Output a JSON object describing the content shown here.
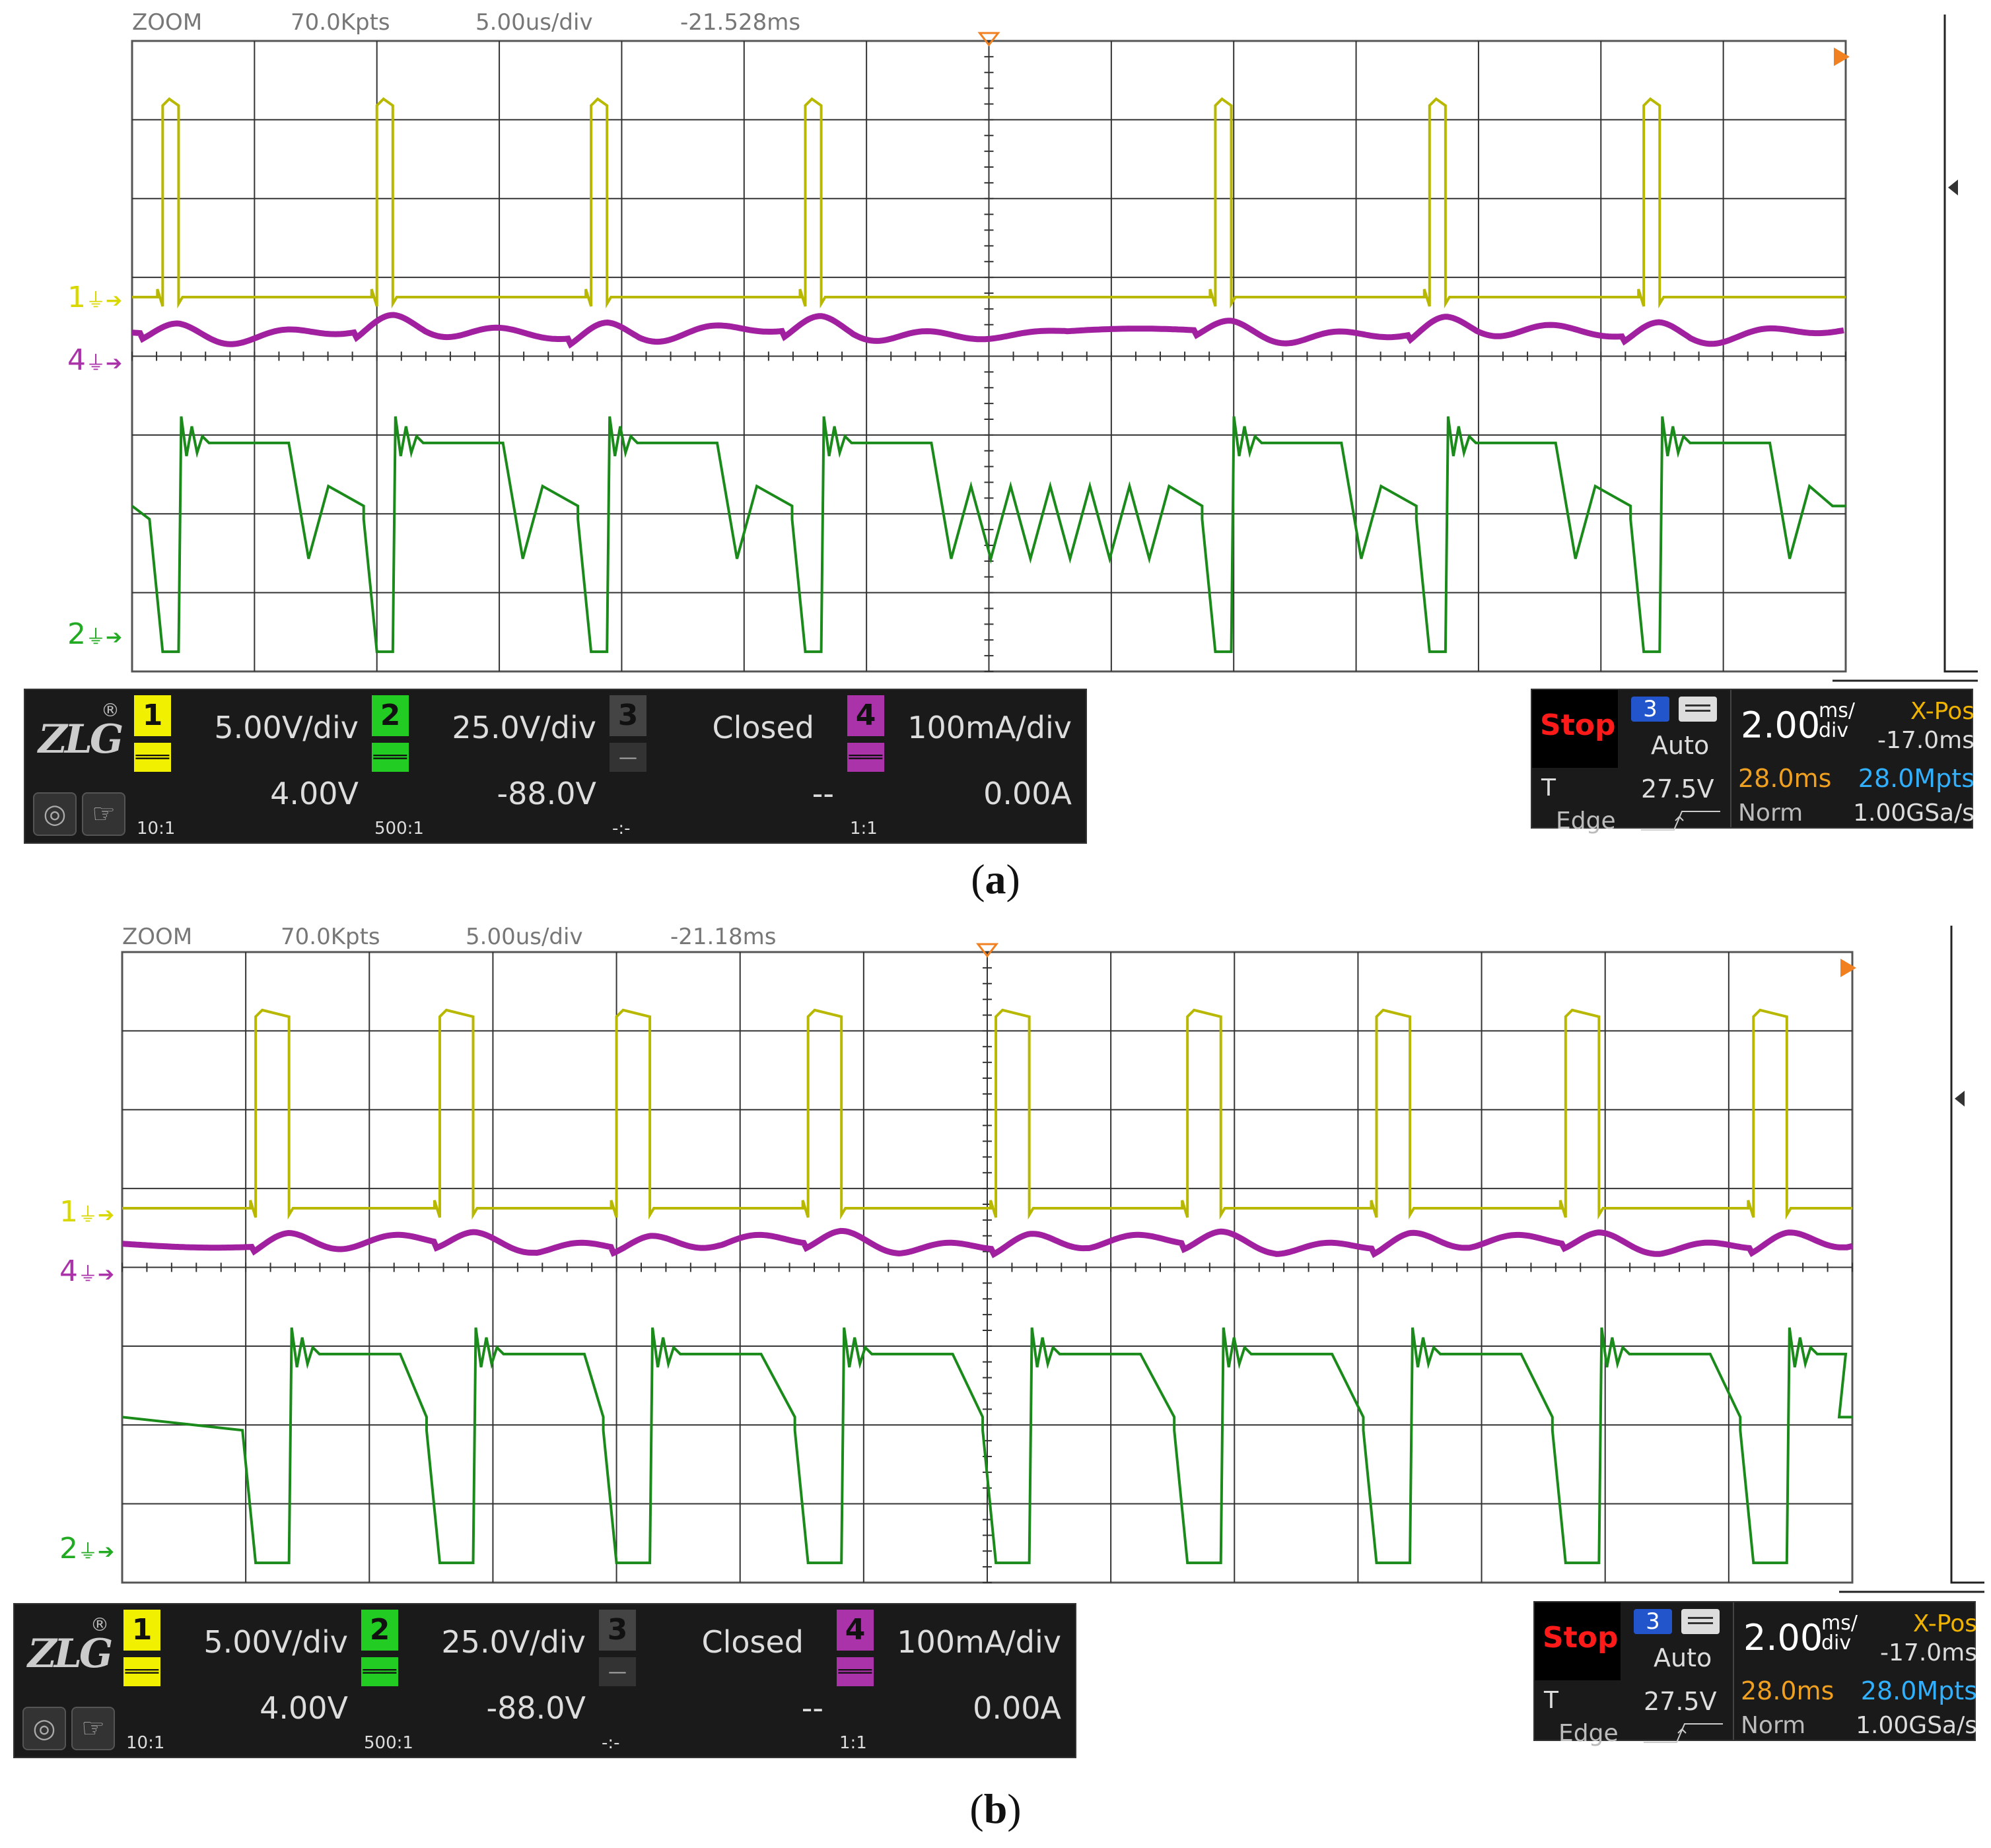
{
  "panels": [
    {
      "caption": "a",
      "zoom": {
        "label": "ZOOM",
        "points": "70.0Kpts",
        "time_div": "5.00us/div",
        "position": "-21.528ms"
      },
      "channels": [
        {
          "num": "1",
          "scale": "5.00V/div",
          "offset": "4.00V",
          "probe": "10:1",
          "color": "#e8e800"
        },
        {
          "num": "2",
          "scale": "25.0V/div",
          "offset": "-88.0V",
          "probe": "500:1",
          "color": "#22bb22"
        },
        {
          "num": "3",
          "scale": "Closed",
          "offset": "--",
          "probe": "-:-",
          "color": "#555555"
        },
        {
          "num": "4",
          "scale": "100mA/div",
          "offset": "0.00A",
          "probe": "1:1",
          "color": "#aa33aa"
        }
      ],
      "markers": {
        "ch1": "1",
        "ch4": "4",
        "ch2": "2"
      },
      "status": {
        "run_state": "Stop",
        "trigger_source": "3",
        "trigger_mode": "Auto",
        "trigger_label": "T",
        "trigger_level": "27.5V",
        "trigger_type": "Edge",
        "timebase": "2.00",
        "timebase_unit_top": "ms/",
        "timebase_unit_bottom": "div",
        "xpos_label": "X-Pos",
        "xpos_value": "-17.0ms",
        "mem_time": "28.0ms",
        "mem_points": "28.0Mpts",
        "acq_mode": "Norm",
        "sample_rate": "1.00GSa/s"
      },
      "pulse_rises_div": [
        0.25,
        2.0,
        3.75,
        5.5,
        8.85,
        10.6,
        12.35
      ],
      "pulse_width_div": 0.13
    },
    {
      "caption": "b",
      "zoom": {
        "label": "ZOOM",
        "points": "70.0Kpts",
        "time_div": "5.00us/div",
        "position": "-21.18ms"
      },
      "channels": [
        {
          "num": "1",
          "scale": "5.00V/div",
          "offset": "4.00V",
          "probe": "10:1",
          "color": "#e8e800"
        },
        {
          "num": "2",
          "scale": "25.0V/div",
          "offset": "-88.0V",
          "probe": "500:1",
          "color": "#22bb22"
        },
        {
          "num": "3",
          "scale": "Closed",
          "offset": "--",
          "probe": "-:-",
          "color": "#555555"
        },
        {
          "num": "4",
          "scale": "100mA/div",
          "offset": "0.00A",
          "probe": "1:1",
          "color": "#aa33aa"
        }
      ],
      "markers": {
        "ch1": "1",
        "ch4": "4",
        "ch2": "2"
      },
      "status": {
        "run_state": "Stop",
        "trigger_source": "3",
        "trigger_mode": "Auto",
        "trigger_label": "T",
        "trigger_level": "27.5V",
        "trigger_type": "Edge",
        "timebase": "2.00",
        "timebase_unit_top": "ms/",
        "timebase_unit_bottom": "div",
        "xpos_label": "X-Pos",
        "xpos_value": "-17.0ms",
        "mem_time": "28.0ms",
        "mem_points": "28.0Mpts",
        "acq_mode": "Norm",
        "sample_rate": "1.00GSa/s"
      },
      "pulse_rises_div": [
        1.08,
        2.57,
        4.0,
        5.55,
        7.07,
        8.62,
        10.15,
        11.68,
        13.2
      ],
      "pulse_width_div": 0.27
    }
  ]
}
